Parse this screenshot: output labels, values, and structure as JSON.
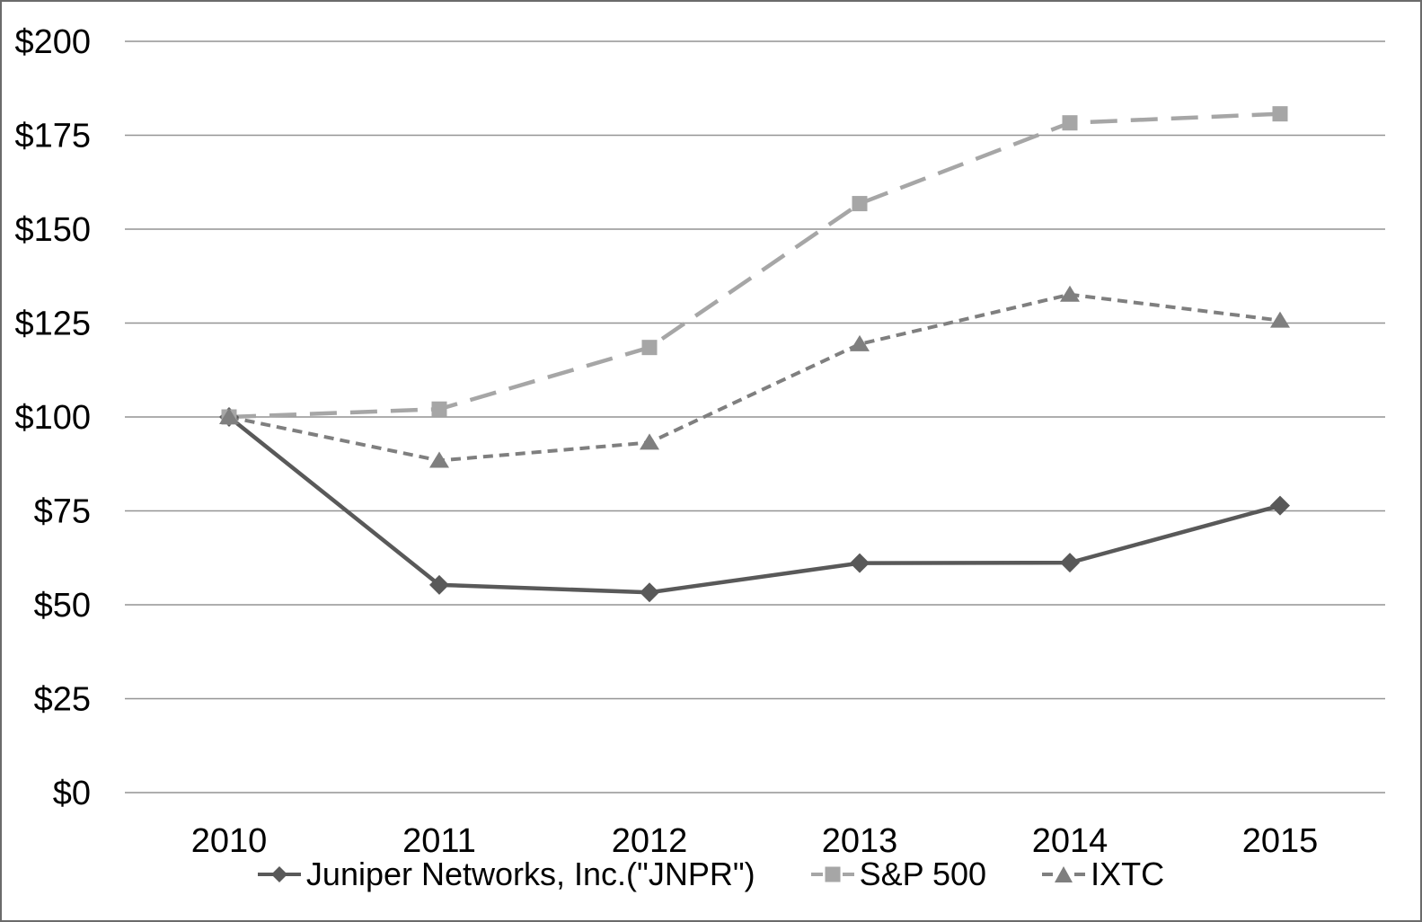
{
  "chart_data": {
    "type": "line",
    "title": "",
    "xlabel": "",
    "ylabel": "",
    "categories": [
      "2010",
      "2011",
      "2012",
      "2013",
      "2014",
      "2015"
    ],
    "series": [
      {
        "id": "jnpr",
        "name": "Juniper Networks, Inc.(\"JNPR\")",
        "marker": "diamond",
        "line_style": "solid",
        "color": "#595959",
        "values": [
          100,
          55.3,
          53.3,
          61.1,
          61.2,
          76.4
        ]
      },
      {
        "id": "sp500",
        "name": "S&P 500",
        "marker": "square",
        "line_style": "long-dash",
        "color": "#a6a6a6",
        "values": [
          100,
          102.1,
          118.5,
          156.8,
          178.3,
          180.7
        ]
      },
      {
        "id": "ixtc",
        "name": "IXTC",
        "marker": "triangle",
        "line_style": "short-dash",
        "color": "#7f7f7f",
        "values": [
          100,
          88.4,
          93.2,
          119.4,
          132.6,
          125.7
        ]
      }
    ],
    "y_ticks": [
      "$200",
      "$175",
      "$150",
      "$125",
      "$100",
      "$75",
      "$50",
      "$25",
      "$0"
    ],
    "y_tick_values": [
      200,
      175,
      150,
      125,
      100,
      75,
      50,
      25,
      0
    ],
    "ylim": [
      0,
      200
    ],
    "grid": "horizontal",
    "legend_position": "bottom",
    "gridline_color": "#949494",
    "text_color": "#000000",
    "background_color": "#ffffff"
  }
}
